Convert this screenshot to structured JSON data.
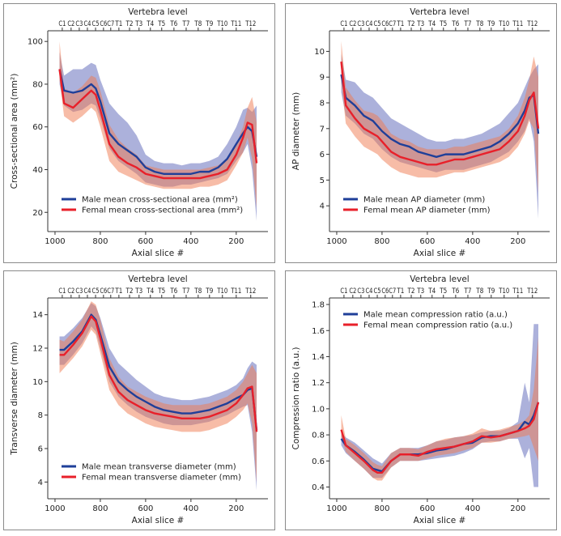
{
  "colors": {
    "male": "#1f3f99",
    "female": "#e8202a",
    "male_band": "#5a64b8",
    "female_band": "#f07a50"
  },
  "vertebra": {
    "title": "Vertebra level",
    "labels": [
      "C1",
      "C2",
      "C3",
      "C4",
      "C5",
      "C6",
      "C7",
      "T1",
      "T2",
      "T3",
      "T4",
      "T5",
      "T6",
      "T7",
      "T8",
      "T9",
      "T10",
      "T11",
      "T12"
    ],
    "positions": [
      968,
      929,
      893,
      857,
      821,
      786,
      754,
      718,
      671,
      629,
      579,
      529,
      475,
      421,
      368,
      318,
      261,
      200,
      136
    ]
  },
  "chart_data": [
    {
      "type": "area",
      "title": "",
      "xlabel": "Axial slice #",
      "ylabel": "Cross-sectional area (mm²)",
      "xlim": [
        1032,
        60
      ],
      "ylim": [
        11,
        105
      ],
      "xticks": [
        1000,
        800,
        600,
        400,
        200
      ],
      "yticks": [
        20,
        40,
        60,
        80,
        100
      ],
      "legend_position": "bottom-left",
      "x": [
        980,
        960,
        920,
        880,
        840,
        820,
        800,
        760,
        720,
        680,
        640,
        600,
        560,
        520,
        480,
        440,
        400,
        360,
        320,
        280,
        240,
        200,
        170,
        150,
        130,
        110
      ],
      "series": [
        {
          "name": "Male mean cross-sectional area (mm²)",
          "values": [
            87,
            77,
            76,
            77,
            80,
            78,
            72,
            57,
            52,
            49,
            46,
            41,
            39,
            38,
            38,
            38,
            38,
            39,
            39,
            41,
            45,
            52,
            57,
            60,
            58,
            46
          ],
          "lower": [
            80,
            70,
            67,
            68,
            71,
            70,
            64,
            50,
            44,
            41,
            38,
            34,
            33,
            32,
            32,
            33,
            33,
            34,
            35,
            36,
            38,
            44,
            48,
            52,
            40,
            16
          ],
          "upper": [
            95,
            84,
            87,
            87,
            90,
            89,
            82,
            71,
            66,
            62,
            56,
            47,
            44,
            43,
            43,
            42,
            43,
            43,
            44,
            46,
            52,
            60,
            68,
            69,
            67,
            70
          ]
        },
        {
          "name": "Femal mean cross-sectional area (mm²)",
          "values": [
            87,
            71,
            69,
            73,
            77,
            75,
            68,
            52,
            46,
            43,
            41,
            38,
            37,
            36,
            36,
            36,
            36,
            36,
            37,
            38,
            40,
            47,
            55,
            62,
            61,
            43
          ],
          "lower": [
            82,
            65,
            62,
            65,
            69,
            67,
            60,
            44,
            39,
            37,
            35,
            33,
            32,
            31,
            31,
            31,
            31,
            32,
            32,
            33,
            35,
            42,
            48,
            55,
            45,
            22
          ],
          "upper": [
            100,
            78,
            76,
            79,
            84,
            83,
            77,
            61,
            54,
            50,
            47,
            42,
            41,
            40,
            40,
            40,
            40,
            40,
            41,
            42,
            45,
            52,
            60,
            69,
            74,
            62
          ]
        }
      ]
    },
    {
      "type": "area",
      "title": "",
      "xlabel": "Axial slice #",
      "ylabel": "AP diameter (mm)",
      "xlim": [
        1032,
        60
      ],
      "ylim": [
        3.0,
        10.8
      ],
      "xticks": [
        1000,
        800,
        600,
        400,
        200
      ],
      "yticks": [
        4,
        5,
        6,
        7,
        8,
        9,
        10
      ],
      "legend_position": "bottom-left",
      "x": [
        980,
        960,
        920,
        880,
        840,
        820,
        800,
        760,
        720,
        680,
        640,
        600,
        560,
        520,
        480,
        440,
        400,
        360,
        320,
        280,
        240,
        200,
        170,
        150,
        130,
        110
      ],
      "series": [
        {
          "name": "Male mean AP diameter (mm)",
          "values": [
            9.1,
            8.2,
            7.9,
            7.5,
            7.3,
            7.1,
            6.9,
            6.6,
            6.4,
            6.3,
            6.1,
            6.0,
            5.9,
            6.0,
            6.0,
            6.0,
            6.1,
            6.2,
            6.3,
            6.5,
            6.8,
            7.2,
            7.7,
            8.2,
            8.3,
            6.8
          ],
          "lower": [
            8.4,
            7.5,
            7.2,
            6.8,
            6.6,
            6.4,
            6.2,
            5.9,
            5.7,
            5.6,
            5.5,
            5.4,
            5.3,
            5.4,
            5.4,
            5.4,
            5.5,
            5.6,
            5.7,
            5.9,
            6.1,
            6.5,
            6.9,
            7.4,
            6.5,
            3.5
          ],
          "upper": [
            9.9,
            8.9,
            8.8,
            8.4,
            8.2,
            8.0,
            7.8,
            7.4,
            7.2,
            7.0,
            6.8,
            6.6,
            6.5,
            6.5,
            6.6,
            6.6,
            6.7,
            6.8,
            7.0,
            7.2,
            7.6,
            8.0,
            8.6,
            9.0,
            9.3,
            9.5
          ]
        },
        {
          "name": "Femal mean AP diameter (mm)",
          "values": [
            9.6,
            7.9,
            7.4,
            7.0,
            6.8,
            6.7,
            6.5,
            6.1,
            5.9,
            5.8,
            5.7,
            5.6,
            5.6,
            5.7,
            5.8,
            5.8,
            5.9,
            6.0,
            6.1,
            6.2,
            6.5,
            6.9,
            7.5,
            8.1,
            8.4,
            7.0
          ],
          "lower": [
            8.8,
            7.2,
            6.7,
            6.3,
            6.1,
            6.0,
            5.8,
            5.5,
            5.3,
            5.2,
            5.1,
            5.1,
            5.1,
            5.2,
            5.3,
            5.3,
            5.4,
            5.5,
            5.6,
            5.7,
            5.9,
            6.3,
            6.8,
            7.3,
            7.0,
            4.5
          ],
          "upper": [
            10.4,
            8.6,
            8.1,
            7.7,
            7.6,
            7.5,
            7.3,
            6.8,
            6.6,
            6.5,
            6.3,
            6.2,
            6.2,
            6.2,
            6.3,
            6.3,
            6.4,
            6.5,
            6.6,
            6.7,
            7.0,
            7.5,
            8.2,
            8.9,
            9.8,
            9.0
          ]
        }
      ]
    },
    {
      "type": "area",
      "title": "",
      "xlabel": "Axial slice #",
      "ylabel": "Transverse diameter (mm)",
      "xlim": [
        1032,
        60
      ],
      "ylim": [
        3,
        15
      ],
      "xticks": [
        1000,
        800,
        600,
        400,
        200
      ],
      "yticks": [
        4,
        6,
        8,
        10,
        12,
        14
      ],
      "legend_position": "bottom-left",
      "x": [
        980,
        960,
        920,
        880,
        840,
        820,
        800,
        760,
        720,
        680,
        640,
        600,
        560,
        520,
        480,
        440,
        400,
        360,
        320,
        280,
        240,
        200,
        170,
        150,
        130,
        110
      ],
      "series": [
        {
          "name": "Male mean transverse diameter (mm)",
          "values": [
            11.9,
            11.9,
            12.4,
            13.0,
            14.0,
            13.7,
            12.8,
            10.9,
            10.0,
            9.5,
            9.1,
            8.8,
            8.5,
            8.3,
            8.2,
            8.1,
            8.1,
            8.2,
            8.3,
            8.5,
            8.7,
            9.0,
            9.2,
            9.5,
            9.6,
            7.1
          ],
          "lower": [
            11.0,
            11.0,
            11.6,
            12.3,
            13.3,
            13.0,
            12.0,
            10.0,
            9.1,
            8.6,
            8.2,
            7.9,
            7.7,
            7.5,
            7.4,
            7.4,
            7.4,
            7.5,
            7.6,
            7.8,
            8.0,
            8.3,
            8.5,
            8.6,
            7.0,
            3.5
          ],
          "upper": [
            12.7,
            12.7,
            13.2,
            13.8,
            14.7,
            14.5,
            13.8,
            12.0,
            11.1,
            10.6,
            10.1,
            9.7,
            9.3,
            9.1,
            9.0,
            8.9,
            8.9,
            9.0,
            9.1,
            9.3,
            9.5,
            9.8,
            10.2,
            10.8,
            11.2,
            11.0
          ]
        },
        {
          "name": "Femal mean transverse diameter (mm)",
          "values": [
            11.6,
            11.6,
            12.2,
            12.9,
            13.9,
            13.6,
            12.6,
            10.4,
            9.4,
            8.9,
            8.6,
            8.3,
            8.1,
            8.0,
            7.9,
            7.8,
            7.8,
            7.8,
            7.9,
            8.1,
            8.3,
            8.7,
            9.2,
            9.6,
            9.7,
            7.0
          ],
          "lower": [
            10.5,
            10.8,
            11.4,
            12.1,
            13.1,
            12.8,
            11.7,
            9.5,
            8.6,
            8.1,
            7.8,
            7.5,
            7.3,
            7.2,
            7.1,
            7.0,
            7.0,
            7.0,
            7.1,
            7.3,
            7.5,
            7.9,
            8.3,
            8.7,
            7.5,
            4.0
          ],
          "upper": [
            12.5,
            12.4,
            13.0,
            13.7,
            14.8,
            14.6,
            13.7,
            11.4,
            10.3,
            9.7,
            9.4,
            9.1,
            8.9,
            8.7,
            8.6,
            8.6,
            8.6,
            8.6,
            8.7,
            8.9,
            9.1,
            9.5,
            10.0,
            10.5,
            11.0,
            10.5
          ]
        }
      ]
    },
    {
      "type": "area",
      "title": "",
      "xlabel": "Axial slice #",
      "ylabel": "Compression ratio (a.u.)",
      "xlim": [
        1032,
        60
      ],
      "ylim": [
        0.31,
        1.85
      ],
      "xticks": [
        1000,
        800,
        600,
        400,
        200
      ],
      "yticks": [
        0.4,
        0.6,
        0.8,
        1.0,
        1.2,
        1.4,
        1.6,
        1.8
      ],
      "legend_position": "top-left",
      "x": [
        980,
        960,
        920,
        880,
        840,
        820,
        800,
        760,
        720,
        680,
        640,
        600,
        560,
        520,
        480,
        440,
        400,
        360,
        320,
        280,
        240,
        200,
        170,
        150,
        130,
        110
      ],
      "series": [
        {
          "name": "Male mean compression ratio (a.u.)",
          "values": [
            0.77,
            0.72,
            0.67,
            0.61,
            0.54,
            0.53,
            0.52,
            0.6,
            0.65,
            0.65,
            0.65,
            0.66,
            0.68,
            0.69,
            0.71,
            0.73,
            0.74,
            0.78,
            0.79,
            0.79,
            0.81,
            0.83,
            0.9,
            0.88,
            0.95,
            1.05
          ],
          "lower": [
            0.72,
            0.66,
            0.6,
            0.54,
            0.47,
            0.47,
            0.47,
            0.55,
            0.6,
            0.6,
            0.6,
            0.61,
            0.62,
            0.63,
            0.64,
            0.66,
            0.69,
            0.74,
            0.75,
            0.75,
            0.77,
            0.77,
            0.62,
            0.7,
            0.4,
            0.4
          ],
          "upper": [
            0.82,
            0.78,
            0.74,
            0.68,
            0.62,
            0.6,
            0.58,
            0.66,
            0.7,
            0.7,
            0.7,
            0.72,
            0.75,
            0.76,
            0.78,
            0.79,
            0.8,
            0.82,
            0.83,
            0.83,
            0.85,
            0.9,
            1.2,
            1.05,
            1.65,
            1.65
          ]
        },
        {
          "name": "Femal mean compression ratio (a.u.)",
          "values": [
            0.84,
            0.72,
            0.66,
            0.6,
            0.53,
            0.51,
            0.51,
            0.6,
            0.65,
            0.65,
            0.64,
            0.67,
            0.69,
            0.7,
            0.71,
            0.73,
            0.75,
            0.79,
            0.78,
            0.79,
            0.81,
            0.83,
            0.85,
            0.87,
            0.92,
            1.05
          ],
          "lower": [
            0.78,
            0.67,
            0.6,
            0.54,
            0.47,
            0.45,
            0.45,
            0.55,
            0.6,
            0.6,
            0.6,
            0.62,
            0.64,
            0.65,
            0.66,
            0.68,
            0.7,
            0.74,
            0.74,
            0.75,
            0.77,
            0.78,
            0.79,
            0.8,
            0.7,
            0.6
          ],
          "upper": [
            0.95,
            0.77,
            0.72,
            0.66,
            0.59,
            0.57,
            0.56,
            0.66,
            0.7,
            0.7,
            0.69,
            0.72,
            0.75,
            0.77,
            0.78,
            0.79,
            0.81,
            0.85,
            0.83,
            0.84,
            0.86,
            0.88,
            0.91,
            0.95,
            1.15,
            1.55
          ]
        }
      ]
    }
  ]
}
